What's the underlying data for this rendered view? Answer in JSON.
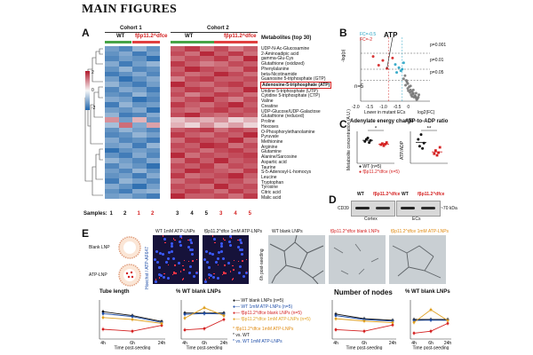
{
  "page_title": "MAIN FIGURES",
  "panelA": {
    "letter": "A",
    "cohort1": "Cohort 1",
    "cohort2": "Cohort 2",
    "wt": "WT",
    "ko": "fβp11.2^dfce",
    "color_scale": {
      "max": "2",
      "mid": "0",
      "min": "-2"
    },
    "metabolites_header": "Metabolites (top 30)",
    "metabolites": [
      "UDP-N-Ac-Glucosamine",
      "2-Aminoadipic acid",
      "gamma-Glu-Cys",
      "Glutathione (oxidized)",
      "Phenylalanine",
      "beta-Nicotinamide",
      "Guanosine 5-triphosphate (GTP)",
      "Adenosine-5-triphosphate (ATP)",
      "Uridine 5-triphosphate (UTP)",
      "Cytidine 5-triphosphate (CTP)",
      "Valine",
      "Creatine",
      "UDP-Glucose/UDP-Galactose",
      "Glutathione (reduced)",
      "Proline",
      "Hexoses",
      "O-Phosphorylethanolamine",
      "Pyruvate",
      "Methionine",
      "Arginine",
      "Glutamine",
      "Alanine/Sarcosine",
      "Aspartic acid",
      "Taurine",
      "S-5-Adenosyl-L-homocys",
      "Leucine",
      "Tryptophan",
      "Tyrosine",
      "Citric acid",
      "Malic acid"
    ],
    "highlighted_index": 7,
    "samples_label": "Samples:",
    "samples_cohort1": [
      "1",
      "2",
      "1",
      "2"
    ],
    "samples_cohort2": [
      "3",
      "4",
      "5",
      "3",
      "4",
      "5"
    ],
    "cohort1_values": [
      [
        -0.8,
        -1.0,
        -0.6,
        -0.9
      ],
      [
        -0.9,
        -0.7,
        -1.1,
        -0.8
      ],
      [
        -1.0,
        -0.8,
        -0.9,
        -1.2
      ],
      [
        -0.7,
        -1.1,
        -0.8,
        -0.6
      ],
      [
        -0.9,
        -0.6,
        -1.0,
        -0.9
      ],
      [
        -1.1,
        -0.9,
        -0.7,
        -1.0
      ],
      [
        -0.8,
        -1.2,
        -0.9,
        -0.7
      ],
      [
        -0.6,
        -0.9,
        -1.1,
        -0.8
      ],
      [
        -1.0,
        -0.7,
        -0.8,
        -1.1
      ],
      [
        -0.9,
        -1.0,
        -0.6,
        -0.9
      ],
      [
        -0.7,
        -0.8,
        -1.2,
        -1.0
      ],
      [
        -1.1,
        -0.6,
        -0.9,
        -0.8
      ],
      [
        -0.8,
        -0.9,
        -0.7,
        -1.2
      ],
      [
        -0.6,
        -1.1,
        -1.0,
        -0.7
      ],
      [
        0.6,
        -0.8,
        0.4,
        -0.9
      ],
      [
        -0.5,
        0.8,
        -0.7,
        0.5
      ],
      [
        -0.9,
        -0.6,
        -0.8,
        -1.0
      ],
      [
        -1.0,
        -0.9,
        -0.6,
        -0.8
      ],
      [
        -0.7,
        -1.0,
        -0.9,
        -1.1
      ],
      [
        -0.8,
        -0.7,
        -1.1,
        -0.6
      ],
      [
        -1.2,
        -0.9,
        -0.8,
        -0.9
      ],
      [
        -0.9,
        -1.1,
        -0.7,
        -1.0
      ],
      [
        -0.6,
        -0.8,
        -1.0,
        -0.7
      ],
      [
        -1.0,
        -0.7,
        -0.9,
        -1.2
      ],
      [
        -0.8,
        -1.0,
        -0.6,
        -0.9
      ],
      [
        -0.9,
        -0.8,
        -1.1,
        -0.7
      ],
      [
        -1.1,
        -0.6,
        -0.8,
        -1.0
      ],
      [
        -0.7,
        -0.9,
        -1.2,
        -0.8
      ],
      [
        -0.9,
        -1.1,
        -0.7,
        -0.6
      ],
      [
        -0.8,
        -0.7,
        -0.9,
        -1.1
      ]
    ],
    "cohort2_values": [
      [
        0.9,
        1.1,
        0.8,
        1.0,
        0.7,
        0.9
      ],
      [
        1.0,
        0.8,
        1.2,
        0.9,
        1.1,
        0.8
      ],
      [
        0.8,
        1.0,
        0.9,
        1.1,
        0.8,
        1.2
      ],
      [
        1.1,
        0.9,
        0.7,
        0.8,
        1.0,
        0.9
      ],
      [
        0.9,
        1.2,
        1.0,
        0.9,
        0.8,
        1.1
      ],
      [
        1.0,
        0.8,
        0.9,
        1.2,
        1.0,
        0.8
      ],
      [
        0.7,
        1.0,
        1.1,
        0.9,
        0.9,
        1.0
      ],
      [
        1.2,
        0.9,
        0.8,
        1.0,
        1.1,
        0.9
      ],
      [
        0.9,
        1.1,
        1.0,
        0.8,
        0.9,
        1.2
      ],
      [
        1.0,
        0.7,
        0.9,
        1.1,
        1.0,
        0.8
      ],
      [
        0.8,
        1.0,
        1.2,
        0.9,
        0.7,
        1.0
      ],
      [
        1.1,
        0.9,
        0.8,
        1.0,
        1.2,
        0.9
      ],
      [
        0.9,
        0.8,
        1.0,
        1.1,
        0.9,
        1.0
      ],
      [
        1.0,
        1.2,
        0.9,
        0.8,
        1.0,
        0.9
      ],
      [
        0.3,
        0.5,
        0.4,
        0.6,
        0.2,
        0.4
      ],
      [
        0.4,
        0.2,
        0.6,
        0.3,
        0.5,
        0.2
      ],
      [
        0.9,
        1.0,
        1.1,
        0.8,
        1.0,
        0.9
      ],
      [
        1.1,
        0.9,
        0.8,
        1.0,
        0.9,
        1.2
      ],
      [
        0.8,
        1.1,
        1.0,
        0.9,
        1.2,
        0.8
      ],
      [
        1.0,
        0.9,
        1.2,
        1.1,
        0.8,
        1.0
      ],
      [
        0.9,
        1.0,
        0.8,
        1.0,
        1.1,
        0.9
      ],
      [
        1.2,
        0.8,
        1.0,
        0.9,
        1.0,
        1.1
      ],
      [
        0.8,
        1.1,
        0.9,
        1.2,
        0.9,
        1.0
      ],
      [
        1.0,
        0.9,
        1.1,
        0.8,
        1.0,
        0.9
      ],
      [
        0.9,
        1.2,
        1.0,
        0.9,
        0.8,
        1.1
      ],
      [
        1.1,
        0.8,
        0.9,
        1.0,
        1.2,
        0.9
      ],
      [
        0.8,
        1.0,
        1.1,
        0.9,
        1.0,
        0.8
      ],
      [
        1.0,
        0.9,
        0.8,
        1.2,
        0.9,
        1.0
      ],
      [
        0.9,
        1.1,
        1.0,
        0.8,
        1.1,
        0.9
      ],
      [
        1.2,
        0.9,
        0.9,
        1.0,
        0.8,
        1.1
      ]
    ]
  },
  "panelB": {
    "letter": "B",
    "legend_fc_up": "FC=-0.5",
    "legend_fc_down": "FC=-2",
    "atp_label": "ATP",
    "p_labels": [
      "p=0.001",
      "p=0.01",
      "p=0.05"
    ],
    "n_label": "n=5",
    "y_label": "-log(p)",
    "x_label": "log2(FC)",
    "x_ticks": [
      "-2.0",
      "-1.5",
      "-1.0",
      "-0.5",
      "0"
    ],
    "lower_label": "Lower in mutant ECs"
  },
  "panelC": {
    "letter": "C",
    "title_left": "Adenylate energy charge",
    "title_right": "ATP-to-ADP ratio",
    "ylabel_left": "Metabolite concentration (A.U.)",
    "ylabel_right": "ATP/ADP",
    "legend_wt": "WT (n=5)",
    "legend_ko": "fβp11.2^dfce (n=5)",
    "sig_left": "*",
    "sig_right": "**"
  },
  "panelD": {
    "letter": "D",
    "wt": "WT",
    "ko": "fβp11.2^dfce",
    "marker": "CD39",
    "kda": "~70 kDa",
    "cortex": "Cortex",
    "ecs": "ECs"
  },
  "panelE": {
    "letter": "E",
    "blank_lnp": "Blank LNP",
    "atp_lnp": "ATP-LNP",
    "micro_title_wt": "WT 1mM ATP-LNPs",
    "micro_title_ko": "fβp11.2^dfce 1mM ATP-LNPs",
    "vertical_label": "Hoechst / ATP-AF647",
    "bright_wt": "WT blank LNPs",
    "bright_ko": "fβp11.2^dfce blank LNPs",
    "bright_rescue": "fβp11.2^dfce 1mM ATP-LNPs",
    "seeding_label": "6h post-seeding",
    "tube_length_title": "Tube length",
    "pct_wt_title_left": "% WT blank LNPs",
    "nodes_title": "Number of nodes",
    "pct_wt_title_right": "% WT blank LNPs",
    "x_ticks": [
      "4h",
      "6h",
      "24h"
    ],
    "x_axis_label": "Time post-seeding",
    "legend": [
      {
        "label": "WT blank LNPs (n=5)",
        "color": "#111111"
      },
      {
        "label": "WT 1mM ATP-LNPs (n=5)",
        "color": "#1f4ea8"
      },
      {
        "label": "fβp11.2^dfce blank LNPs (n=5)",
        "color": "#d42020"
      },
      {
        "label": "fβp11.2^dfce 1mM ATP-LNPs (n=5)",
        "color": "#e0a020"
      }
    ],
    "sig_legend": [
      {
        "label": "* fβp11.2^dfce 1mM ATP-LNPs",
        "color": "#e08a10"
      },
      {
        "label": "* vs. WT",
        "color": "#111111"
      },
      {
        "label": "* vs. WT 1mM ATP-LNPs",
        "color": "#1f4ea8"
      }
    ],
    "y_label_tube": "Tube length (μm)",
    "y_label_tube_pct": "Tube length (% of WT)",
    "y_label_nodes": "Number of nodes",
    "y_label_nodes_pct": "Number of nodes (% of WT)"
  },
  "colors": {
    "heat_low": "#2166ac",
    "heat_mid": "#f7f7f7",
    "heat_high": "#b2182b",
    "wt_green": "#47a447",
    "ko_red": "#e04040"
  },
  "chart_data": [
    {
      "type": "scatter",
      "title": "Volcano plot",
      "xlabel": "log2(FC)",
      "ylabel": "-log(p)",
      "xlim": [
        -2.0,
        0.5
      ],
      "ylim": [
        0,
        4
      ],
      "series": [
        {
          "name": "significant-red",
          "color": "#d42020",
          "x": [
            -1.55,
            -1.35,
            -1.2,
            -1.05,
            -0.85
          ],
          "y": [
            2.8,
            2.25,
            2.55,
            2.05,
            2.7
          ]
        },
        {
          "name": "significant-cyan",
          "color": "#27a3c4",
          "x": [
            -0.75,
            -0.62,
            -0.55,
            -0.45,
            -0.7,
            -0.5
          ],
          "y": [
            2.3,
            2.1,
            1.9,
            2.4,
            1.8,
            2.0
          ]
        },
        {
          "name": "other",
          "color": "#777777",
          "x": [
            -0.4,
            -0.35,
            -0.3,
            -0.25,
            -0.2,
            -0.15,
            -0.1,
            -0.05,
            0.0,
            0.05,
            -0.3,
            -0.22,
            -0.12,
            -0.02,
            0.08,
            -0.38,
            -0.28,
            -0.18,
            -0.08,
            0.02,
            -0.33,
            -0.2,
            -0.1,
            0.1,
            -0.45,
            -0.15,
            0.0
          ],
          "y": [
            1.6,
            1.3,
            1.1,
            0.9,
            0.7,
            0.6,
            0.5,
            0.35,
            0.2,
            0.15,
            0.8,
            0.55,
            0.45,
            0.3,
            0.25,
            1.0,
            0.65,
            0.4,
            0.25,
            0.1,
            1.2,
            0.95,
            0.7,
            0.4,
            1.4,
            0.3,
            0.5
          ]
        }
      ],
      "thresholds": [
        3.0,
        2.0,
        1.3
      ]
    },
    {
      "type": "scatter",
      "title": "Adenylate energy charge",
      "ylim": [
        0,
        1.2
      ],
      "series": [
        {
          "name": "WT",
          "color": "#111111",
          "values": [
            0.82,
            0.9,
            0.95,
            0.78,
            0.86
          ]
        },
        {
          "name": "fβp11.2^dfce",
          "color": "#d42020",
          "values": [
            0.7,
            0.74,
            0.66,
            0.72,
            0.78
          ]
        }
      ]
    },
    {
      "type": "scatter",
      "title": "ATP-to-ADP ratio",
      "ylim": [
        0,
        6
      ],
      "series": [
        {
          "name": "WT",
          "color": "#111111",
          "values": [
            4.5,
            3.2,
            5.4,
            2.8,
            3.8
          ]
        },
        {
          "name": "fβp11.2^dfce",
          "color": "#d42020",
          "values": [
            1.8,
            2.4,
            1.5,
            2.0,
            3.0
          ]
        }
      ]
    },
    {
      "type": "line",
      "title": "Tube length",
      "categories": [
        "4h",
        "6h",
        "24h"
      ],
      "ylim": [
        0,
        20
      ],
      "series": [
        {
          "name": "WT blank LNPs",
          "color": "#111111",
          "values": [
            14,
            12,
            9
          ]
        },
        {
          "name": "WT 1mM ATP-LNPs",
          "color": "#1f4ea8",
          "values": [
            13,
            11.5,
            8.5
          ]
        },
        {
          "name": "fβp11.2^dfce blank LNPs",
          "color": "#d42020",
          "values": [
            5,
            4,
            7
          ]
        },
        {
          "name": "fβp11.2^dfce 1mM ATP-LNPs",
          "color": "#e0a020",
          "values": [
            11,
            10,
            8
          ]
        }
      ]
    },
    {
      "type": "line",
      "title": "% WT blank LNPs (tube length)",
      "categories": [
        "4h",
        "6h",
        "24h"
      ],
      "ylim": [
        0,
        150
      ],
      "series": [
        {
          "name": "WT blank LNPs",
          "color": "#111111",
          "values": [
            100,
            100,
            100
          ]
        },
        {
          "name": "WT 1mM ATP-LNPs",
          "color": "#1f4ea8",
          "values": [
            95,
            98,
            96
          ]
        },
        {
          "name": "fβp11.2^dfce blank LNPs",
          "color": "#d42020",
          "values": [
            35,
            40,
            75
          ]
        },
        {
          "name": "fβp11.2^dfce 1mM ATP-LNPs",
          "color": "#e0a020",
          "values": [
            80,
            120,
            90
          ]
        }
      ]
    },
    {
      "type": "line",
      "title": "Number of nodes",
      "categories": [
        "4h",
        "6h",
        "24h"
      ],
      "ylim": [
        0,
        250
      ],
      "series": [
        {
          "name": "WT blank LNPs",
          "color": "#111111",
          "values": [
            160,
            130,
            120
          ]
        },
        {
          "name": "WT 1mM ATP-LNPs",
          "color": "#1f4ea8",
          "values": [
            150,
            125,
            115
          ]
        },
        {
          "name": "fβp11.2^dfce blank LNPs",
          "color": "#d42020",
          "values": [
            60,
            50,
            90
          ]
        },
        {
          "name": "fβp11.2^dfce 1mM ATP-LNPs",
          "color": "#e0a020",
          "values": [
            130,
            115,
            105
          ]
        }
      ]
    },
    {
      "type": "line",
      "title": "% WT blank LNPs (nodes)",
      "categories": [
        "4h",
        "6h",
        "24h"
      ],
      "ylim": [
        0,
        200
      ],
      "series": [
        {
          "name": "WT blank LNPs",
          "color": "#111111",
          "values": [
            100,
            100,
            100
          ]
        },
        {
          "name": "WT 1mM ATP-LNPs",
          "color": "#1f4ea8",
          "values": [
            95,
            97,
            96
          ]
        },
        {
          "name": "fβp11.2^dfce blank LNPs",
          "color": "#d42020",
          "values": [
            30,
            40,
            80
          ]
        },
        {
          "name": "fβp11.2^dfce 1mM ATP-LNPs",
          "color": "#e0a020",
          "values": [
            85,
            150,
            95
          ]
        }
      ]
    }
  ]
}
